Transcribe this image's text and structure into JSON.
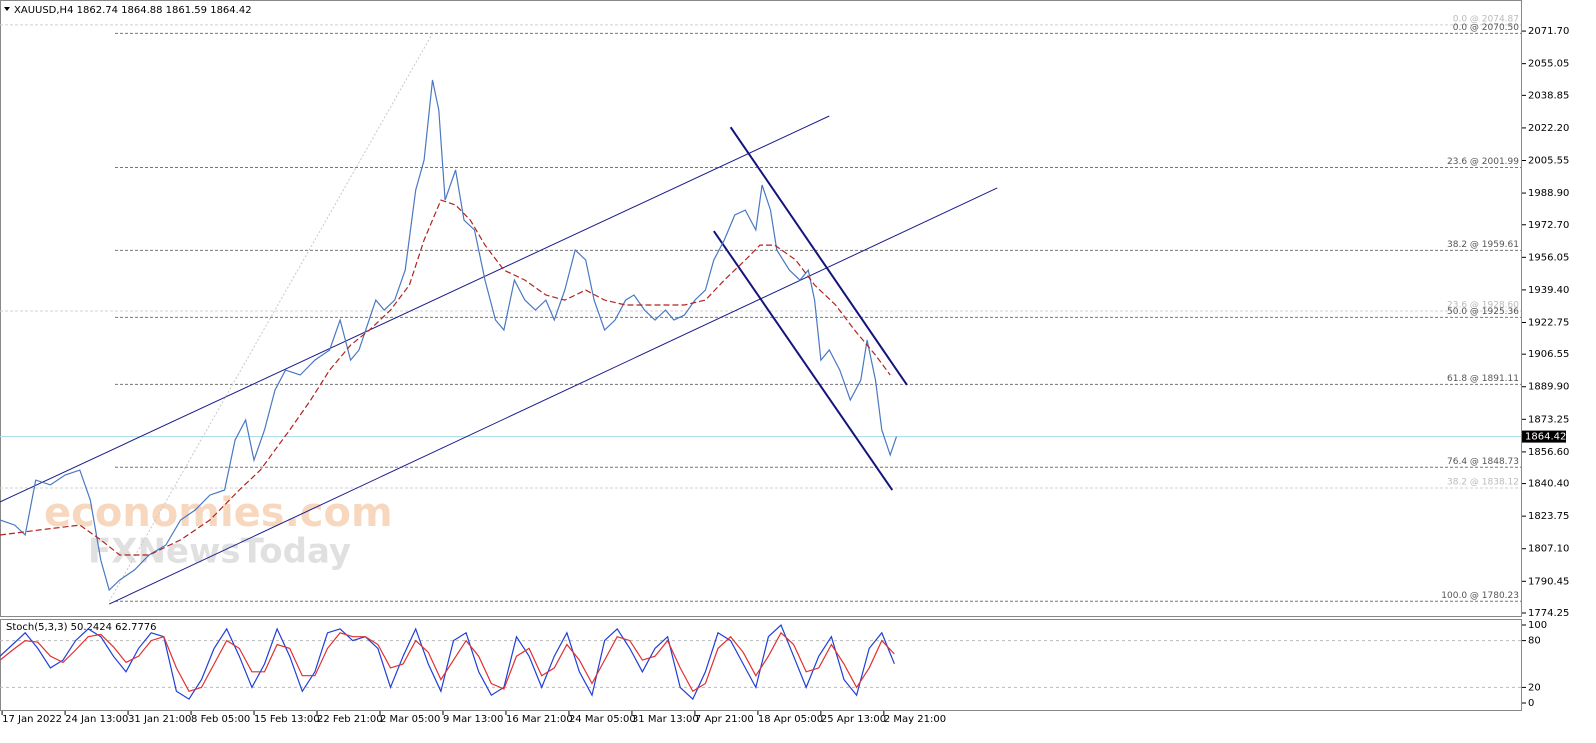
{
  "chart_data": [
    {
      "type": "line",
      "title": "XAUUSD,H4 1862.74 1864.88 1861.59 1864.42",
      "xlim": [
        0,
        724
      ],
      "xticks": [
        {
          "value": 1,
          "label": "17 Jan 2022"
        },
        {
          "value": 31,
          "label": "24 Jan 13:00"
        },
        {
          "value": 61,
          "label": "31 Jan 21:00"
        },
        {
          "value": 91,
          "label": "8 Feb 05:00"
        },
        {
          "value": 121,
          "label": "15 Feb 13:00"
        },
        {
          "value": 151,
          "label": "22 Feb 21:00"
        },
        {
          "value": 181,
          "label": "2 Mar 05:00"
        },
        {
          "value": 211,
          "label": "9 Mar 13:00"
        },
        {
          "value": 241,
          "label": "16 Mar 21:00"
        },
        {
          "value": 271,
          "label": "24 Mar 05:00"
        },
        {
          "value": 301,
          "label": "31 Mar 13:00"
        },
        {
          "value": 331,
          "label": "7 Apr 21:00"
        },
        {
          "value": 361,
          "label": "18 Apr 05:00"
        },
        {
          "value": 391,
          "label": "25 Apr 13:00"
        },
        {
          "value": 421,
          "label": "2 May 21:00"
        }
      ],
      "ylim": [
        1772.2,
        2078.9
      ],
      "yticks": [
        {
          "value": 2071.7,
          "label": "2071.70"
        },
        2055.05,
        2038.85,
        {
          "value": 2022.2,
          "label": "2022.20"
        },
        2005.55,
        {
          "value": 1988.9,
          "label": "1988.90"
        },
        {
          "value": 1972.7,
          "label": "1972.70"
        },
        1956.05,
        {
          "value": 1939.4,
          "label": "1939.40"
        },
        1922.75,
        1906.55,
        {
          "value": 1889.9,
          "label": "1889.90"
        },
        1873.25,
        {
          "value": 1856.6,
          "label": "1856.60"
        },
        {
          "value": 1840.4,
          "label": "1840.40"
        },
        1823.75,
        {
          "value": 1807.1,
          "label": "1807.10"
        },
        1790.45,
        1774.25
      ],
      "current_price": 1864.42,
      "annotations": [
        "economies.com",
        "FXNewsToday"
      ],
      "series": [
        {
          "color": "#4a78c2",
          "dashed": false,
          "x": [
            0,
            7,
            12,
            17,
            24,
            31,
            38,
            43,
            48,
            52,
            57,
            64,
            71,
            79,
            86,
            93,
            100,
            107,
            112,
            117,
            121,
            126,
            131,
            136,
            143,
            150,
            157,
            162,
            167,
            171,
            179,
            183,
            188,
            193,
            198,
            202,
            206,
            209,
            212,
            217,
            221,
            226,
            231,
            236,
            240,
            245,
            250,
            255,
            260,
            264,
            269,
            274,
            279,
            283,
            288,
            293,
            298,
            302,
            307,
            312,
            317,
            321,
            326,
            331,
            336,
            340,
            345,
            350,
            355,
            360,
            363,
            367,
            370,
            376,
            381,
            385,
            388,
            391,
            395,
            400,
            405,
            410,
            413,
            417,
            420,
            424,
            427
          ],
          "values": [
            1821.8,
            1819.2,
            1814.1,
            1842.2,
            1839.7,
            1844.8,
            1847.3,
            1832.0,
            1801.3,
            1786.0,
            1791.1,
            1796.2,
            1803.9,
            1809.0,
            1821.8,
            1826.9,
            1834.5,
            1837.1,
            1862.7,
            1872.9,
            1852.4,
            1867.8,
            1888.2,
            1898.4,
            1895.9,
            1903.5,
            1908.7,
            1924.0,
            1903.5,
            1908.7,
            1934.2,
            1929.1,
            1934.2,
            1949.5,
            1990.4,
            2005.8,
            2046.7,
            2031.3,
            1985.3,
            2000.7,
            1975.1,
            1970.0,
            1944.4,
            1924.0,
            1918.9,
            1944.4,
            1934.2,
            1929.1,
            1934.2,
            1924.0,
            1939.3,
            1959.8,
            1954.7,
            1934.2,
            1918.9,
            1924.0,
            1934.2,
            1936.8,
            1929.1,
            1924.0,
            1929.1,
            1924.0,
            1926.5,
            1934.2,
            1939.3,
            1954.7,
            1964.9,
            1977.7,
            1980.2,
            1970.0,
            1993.0,
            1980.2,
            1959.8,
            1949.5,
            1944.4,
            1949.5,
            1934.2,
            1903.5,
            1908.7,
            1898.4,
            1883.1,
            1893.3,
            1913.8,
            1893.3,
            1867.8,
            1855.0,
            1864.42
          ]
        },
        {
          "color": "#b22222",
          "dashed": true,
          "x": [
            0,
            19,
            38,
            48,
            57,
            71,
            86,
            100,
            114,
            124,
            138,
            148,
            157,
            167,
            176,
            186,
            195,
            202,
            210,
            217,
            224,
            231,
            240,
            250,
            260,
            269,
            279,
            288,
            298,
            307,
            317,
            326,
            336,
            345,
            355,
            362,
            369,
            379,
            388,
            398,
            407,
            417,
            424
          ],
          "values": [
            1814.1,
            1816.7,
            1819.2,
            1811.6,
            1803.9,
            1803.9,
            1811.6,
            1821.8,
            1837.1,
            1847.3,
            1867.8,
            1883.1,
            1898.4,
            1911.2,
            1918.9,
            1929.1,
            1941.9,
            1964.9,
            1985.3,
            1982.8,
            1975.1,
            1962.3,
            1949.5,
            1944.4,
            1936.8,
            1934.2,
            1939.3,
            1934.2,
            1931.7,
            1931.7,
            1931.7,
            1931.7,
            1934.2,
            1944.4,
            1954.7,
            1962.3,
            1962.3,
            1954.7,
            1941.9,
            1931.7,
            1918.9,
            1906.1,
            1895.9
          ]
        }
      ],
      "trendlines": [
        {
          "x": [
            0,
            395
          ],
          "values": [
            1831.0,
            2028.3
          ],
          "color": "#1c1c8f",
          "bold": false,
          "dotted": false
        },
        {
          "x": [
            52,
            475
          ],
          "values": [
            1778.8,
            1991.5
          ],
          "color": "#1c1c8f",
          "bold": false,
          "dotted": false
        },
        {
          "x": [
            348,
            432
          ],
          "values": [
            2022.6,
            1890.8
          ],
          "color": "#14147a",
          "bold": true,
          "dotted": false
        },
        {
          "x": [
            340,
            425
          ],
          "values": [
            1969.5,
            1837.1
          ],
          "color": "#14147a",
          "bold": true,
          "dotted": false
        },
        {
          "x": [
            52,
            206
          ],
          "values": [
            1780.23,
            2070.5
          ],
          "color": "#c8c8c8",
          "bold": false,
          "dotted": true
        }
      ],
      "fib_levels": [
        {
          "value": 2074.87,
          "label": "0.0 @ 2074.87",
          "faint": true
        },
        {
          "value": 2070.5,
          "label": "0.0 @ 2070.50",
          "faint": false
        },
        {
          "value": 2001.99,
          "label": "23.6 @ 2001.99",
          "faint": false
        },
        {
          "value": 1959.61,
          "label": "38.2 @ 1959.61",
          "faint": false
        },
        {
          "value": 1928.6,
          "label": "23.6 @ 1928.60",
          "faint": true
        },
        {
          "value": 1925.36,
          "label": "50.0 @ 1925.36",
          "faint": false
        },
        {
          "value": 1891.11,
          "label": "61.8 @ 1891.11",
          "faint": false
        },
        {
          "value": 1848.73,
          "label": "76.4 @ 1848.73",
          "faint": false
        },
        {
          "value": 1838.12,
          "label": "38.2 @ 1838.12",
          "faint": true
        },
        {
          "value": 1780.23,
          "label": "100.0 @ 1780.23",
          "faint": false
        }
      ]
    },
    {
      "type": "line",
      "title": "Stoch(5,3,3) 50.2424 62.7776",
      "ylim": [
        0,
        100
      ],
      "yticks": [
        0,
        20,
        80,
        100
      ],
      "x": [
        0,
        6,
        12,
        18,
        24,
        30,
        36,
        42,
        48,
        54,
        60,
        66,
        72,
        78,
        84,
        90,
        96,
        102,
        108,
        114,
        120,
        126,
        132,
        138,
        144,
        150,
        156,
        162,
        168,
        174,
        180,
        186,
        192,
        198,
        204,
        210,
        216,
        222,
        228,
        234,
        240,
        246,
        252,
        258,
        264,
        270,
        276,
        282,
        288,
        294,
        300,
        306,
        312,
        318,
        324,
        330,
        336,
        342,
        348,
        354,
        360,
        366,
        372,
        378,
        384,
        390,
        396,
        402,
        408,
        414,
        420,
        426
      ],
      "series": [
        {
          "color": "#1e3fd8",
          "dashed": false,
          "values": [
            60,
            75,
            90,
            70,
            45,
            55,
            80,
            95,
            85,
            60,
            40,
            70,
            90,
            85,
            15,
            5,
            30,
            70,
            95,
            60,
            20,
            50,
            95,
            60,
            15,
            40,
            90,
            95,
            80,
            85,
            70,
            20,
            60,
            95,
            50,
            15,
            80,
            90,
            40,
            10,
            20,
            85,
            60,
            20,
            60,
            90,
            40,
            10,
            80,
            95,
            70,
            40,
            70,
            85,
            20,
            5,
            40,
            90,
            80,
            50,
            20,
            85,
            100,
            60,
            20,
            60,
            85,
            30,
            10,
            70,
            90,
            50.2424
          ]
        },
        {
          "color": "#e03030",
          "dashed": false,
          "values": [
            55,
            68,
            80,
            78,
            60,
            52,
            68,
            85,
            88,
            72,
            52,
            60,
            80,
            85,
            45,
            15,
            20,
            50,
            80,
            70,
            40,
            40,
            75,
            70,
            35,
            35,
            70,
            90,
            85,
            85,
            75,
            45,
            50,
            80,
            65,
            30,
            55,
            80,
            60,
            25,
            18,
            60,
            70,
            35,
            45,
            75,
            55,
            25,
            55,
            85,
            80,
            55,
            60,
            80,
            45,
            15,
            25,
            70,
            85,
            65,
            35,
            60,
            90,
            75,
            40,
            45,
            75,
            50,
            20,
            45,
            80,
            62.7776
          ]
        }
      ]
    }
  ]
}
